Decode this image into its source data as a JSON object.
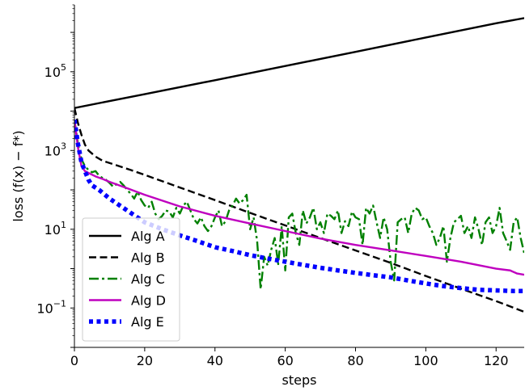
{
  "chart_data": {
    "type": "line",
    "xlabel": "steps",
    "ylabel": "loss (f(x) − f*)",
    "xlim": [
      0,
      128
    ],
    "ylim": [
      0.01,
      5000000
    ],
    "yscale": "log",
    "xticks": [
      0,
      20,
      40,
      60,
      80,
      100,
      120
    ],
    "yticks": [
      {
        "value": 0.1,
        "base": "10",
        "exp": "−1"
      },
      {
        "value": 10,
        "base": "10",
        "exp": "1"
      },
      {
        "value": 1000,
        "base": "10",
        "exp": "3"
      },
      {
        "value": 100000,
        "base": "10",
        "exp": "5"
      }
    ],
    "grid": false,
    "legend": "lower-left",
    "series": [
      {
        "name": "Alg A",
        "color": "#000000",
        "style": "solid",
        "x": [
          0,
          20,
          40,
          60,
          80,
          100,
          120,
          128
        ],
        "y": [
          12000,
          27000,
          61000,
          140000,
          320000,
          740000,
          1700000,
          2300000
        ]
      },
      {
        "name": "Alg B",
        "color": "#000000",
        "style": "dashed",
        "x": [
          0,
          1,
          2,
          3,
          4,
          6,
          8,
          12,
          16,
          20,
          30,
          40,
          50,
          60,
          70,
          80,
          90,
          100,
          110,
          120,
          128
        ],
        "y": [
          12000,
          5000,
          2500,
          1400,
          1000,
          700,
          550,
          420,
          320,
          240,
          115,
          55,
          26,
          12.5,
          6,
          2.9,
          1.4,
          0.65,
          0.31,
          0.15,
          0.08
        ]
      },
      {
        "name": "Alg C",
        "color": "#008000",
        "style": "dashdot",
        "x": [
          0,
          1,
          2,
          3,
          4,
          5,
          6,
          7,
          8,
          9,
          10,
          11,
          12,
          13,
          14,
          15,
          16,
          17,
          18,
          19,
          20,
          21,
          22,
          23,
          24,
          25,
          26,
          27,
          28,
          29,
          30,
          31,
          32,
          33,
          34,
          35,
          36,
          37,
          38,
          39,
          40,
          41,
          42,
          43,
          44,
          45,
          46,
          47,
          48,
          49,
          50,
          51,
          52,
          53,
          54,
          55,
          56,
          57,
          58,
          59,
          60,
          61,
          62,
          63,
          64,
          65,
          66,
          67,
          68,
          69,
          70,
          71,
          72,
          73,
          74,
          75,
          76,
          77,
          78,
          79,
          80,
          81,
          82,
          83,
          84,
          85,
          86,
          87,
          88,
          89,
          90,
          91,
          92,
          93,
          94,
          95,
          96,
          97,
          98,
          99,
          100,
          101,
          102,
          103,
          104,
          105,
          106,
          107,
          108,
          109,
          110,
          111,
          112,
          113,
          114,
          115,
          116,
          117,
          118,
          119,
          120,
          121,
          122,
          123,
          124,
          125,
          126,
          127,
          128
        ],
        "y": [
          6000,
          1500,
          600,
          400,
          320,
          280,
          300,
          230,
          200,
          180,
          150,
          120,
          140,
          160,
          130,
          100,
          80,
          60,
          90,
          55,
          40,
          35,
          50,
          25,
          18,
          22,
          30,
          28,
          20,
          35,
          25,
          40,
          50,
          30,
          18,
          14,
          20,
          12,
          9,
          12,
          20,
          30,
          12,
          16,
          30,
          40,
          60,
          45,
          55,
          75,
          10,
          20,
          5,
          0.3,
          2,
          1.2,
          3,
          6,
          1.3,
          12,
          0.9,
          20,
          25,
          8,
          4,
          30,
          14,
          20,
          35,
          10,
          15,
          8,
          25,
          22,
          18,
          30,
          8,
          16,
          12,
          28,
          20,
          18,
          4,
          35,
          25,
          40,
          15,
          6,
          20,
          10,
          1.5,
          0.5,
          15,
          18,
          20,
          8,
          25,
          35,
          30,
          18,
          20,
          12,
          8,
          4,
          6,
          12,
          1.5,
          6,
          15,
          18,
          22,
          8,
          12,
          6,
          20,
          10,
          4,
          15,
          20,
          8,
          12,
          35,
          8,
          5,
          3,
          15,
          20,
          6,
          2.5
        ]
      },
      {
        "name": "Alg D",
        "color": "#bf00bf",
        "style": "solid",
        "x": [
          0,
          1,
          2,
          3,
          4,
          6,
          8,
          10,
          15,
          20,
          30,
          40,
          50,
          60,
          70,
          80,
          90,
          100,
          110,
          120,
          124,
          126,
          128
        ],
        "y": [
          6000,
          1200,
          400,
          300,
          270,
          220,
          190,
          160,
          110,
          75,
          38,
          22,
          14,
          9,
          5.8,
          4,
          2.9,
          2.1,
          1.5,
          1.0,
          0.9,
          0.75,
          0.7
        ]
      },
      {
        "name": "Alg E",
        "color": "#0000ff",
        "style": "dotted",
        "x": [
          0,
          1,
          2,
          3,
          4,
          5,
          7,
          10,
          15,
          20,
          25,
          30,
          35,
          40,
          45,
          50,
          55,
          60,
          65,
          70,
          75,
          80,
          85,
          90,
          95,
          100,
          105,
          110,
          115,
          120,
          125,
          128
        ],
        "y": [
          6000,
          1500,
          500,
          300,
          180,
          130,
          100,
          60,
          30,
          15,
          10,
          7,
          5,
          3.5,
          2.8,
          2.2,
          1.8,
          1.5,
          1.25,
          1.05,
          0.9,
          0.78,
          0.68,
          0.6,
          0.5,
          0.42,
          0.36,
          0.32,
          0.29,
          0.28,
          0.27,
          0.27
        ]
      }
    ]
  }
}
